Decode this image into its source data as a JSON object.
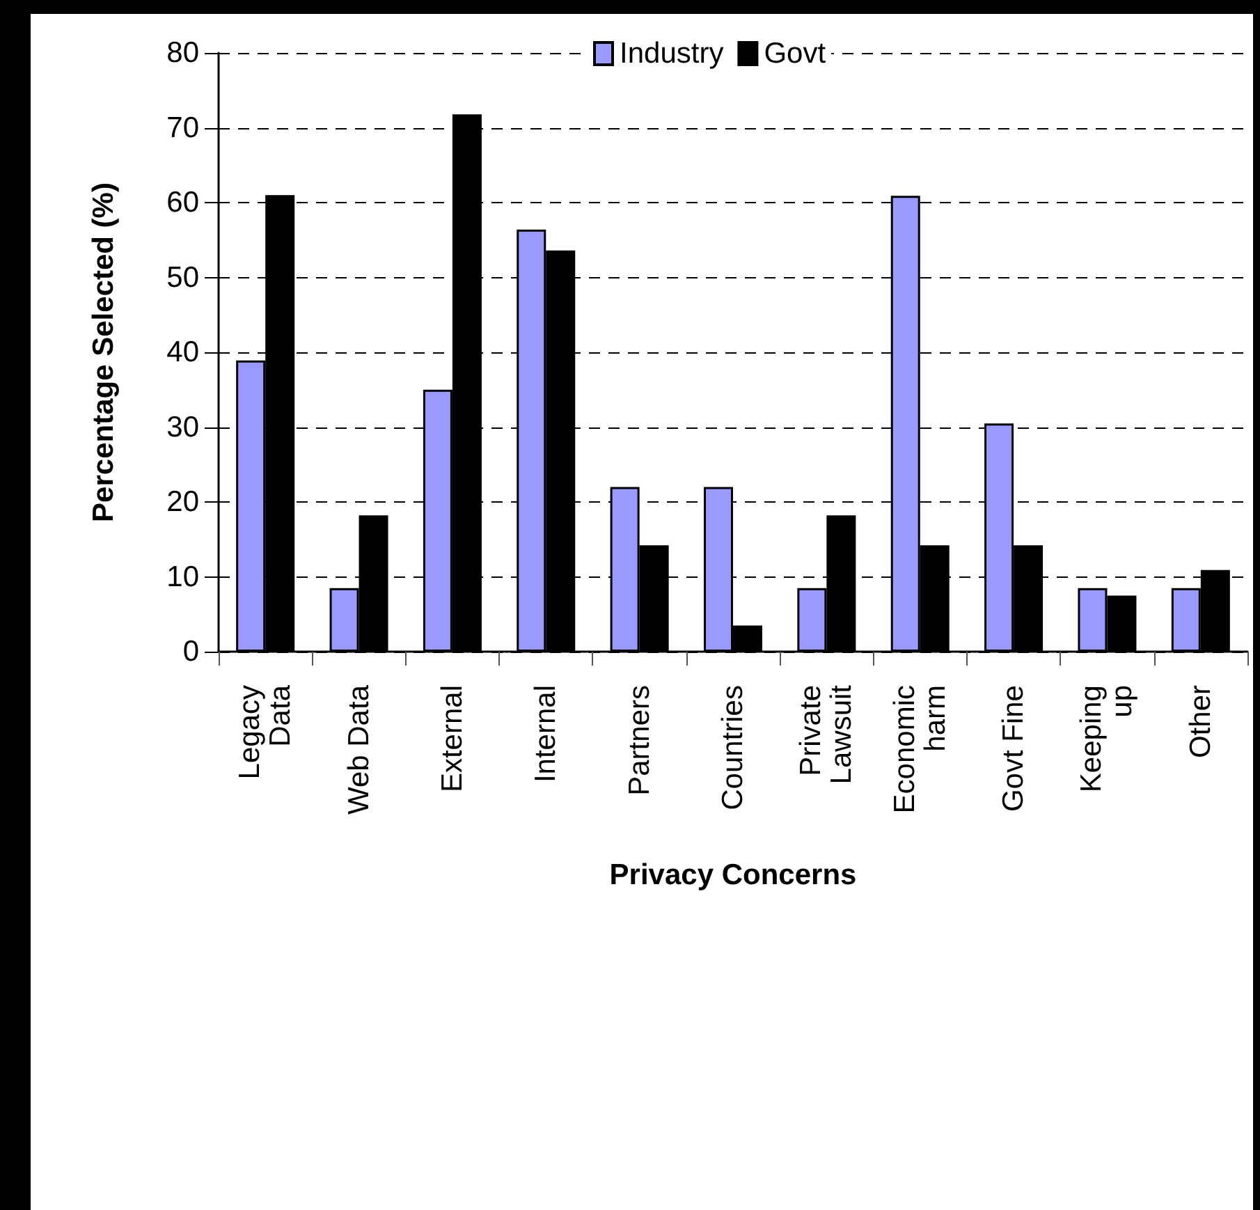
{
  "chart_data": {
    "type": "bar",
    "xlabel": "Privacy Concerns",
    "ylabel": "Percentage Selected (%)",
    "categories": [
      "Legacy\nData",
      "Web Data",
      "External",
      "Internal",
      "Partners",
      "Countries",
      "Private\nLawsuit",
      "Economic\nharm",
      "Govt Fine",
      "Keeping\nup",
      "Other"
    ],
    "series": [
      {
        "name": "Industry",
        "color": "#9999ff",
        "values": [
          38.9,
          8.5,
          35.0,
          56.4,
          22.0,
          22.0,
          8.5,
          60.9,
          30.5,
          8.5,
          8.5
        ]
      },
      {
        "name": "Govt",
        "color": "#000000",
        "values": [
          61.0,
          18.2,
          71.8,
          53.6,
          14.2,
          3.5,
          18.2,
          14.2,
          14.2,
          7.5,
          10.9
        ]
      }
    ],
    "ylim": [
      0,
      80
    ],
    "yticks": [
      0,
      10,
      20,
      30,
      40,
      50,
      60,
      70,
      80
    ],
    "grid": "y",
    "legend": "top"
  }
}
